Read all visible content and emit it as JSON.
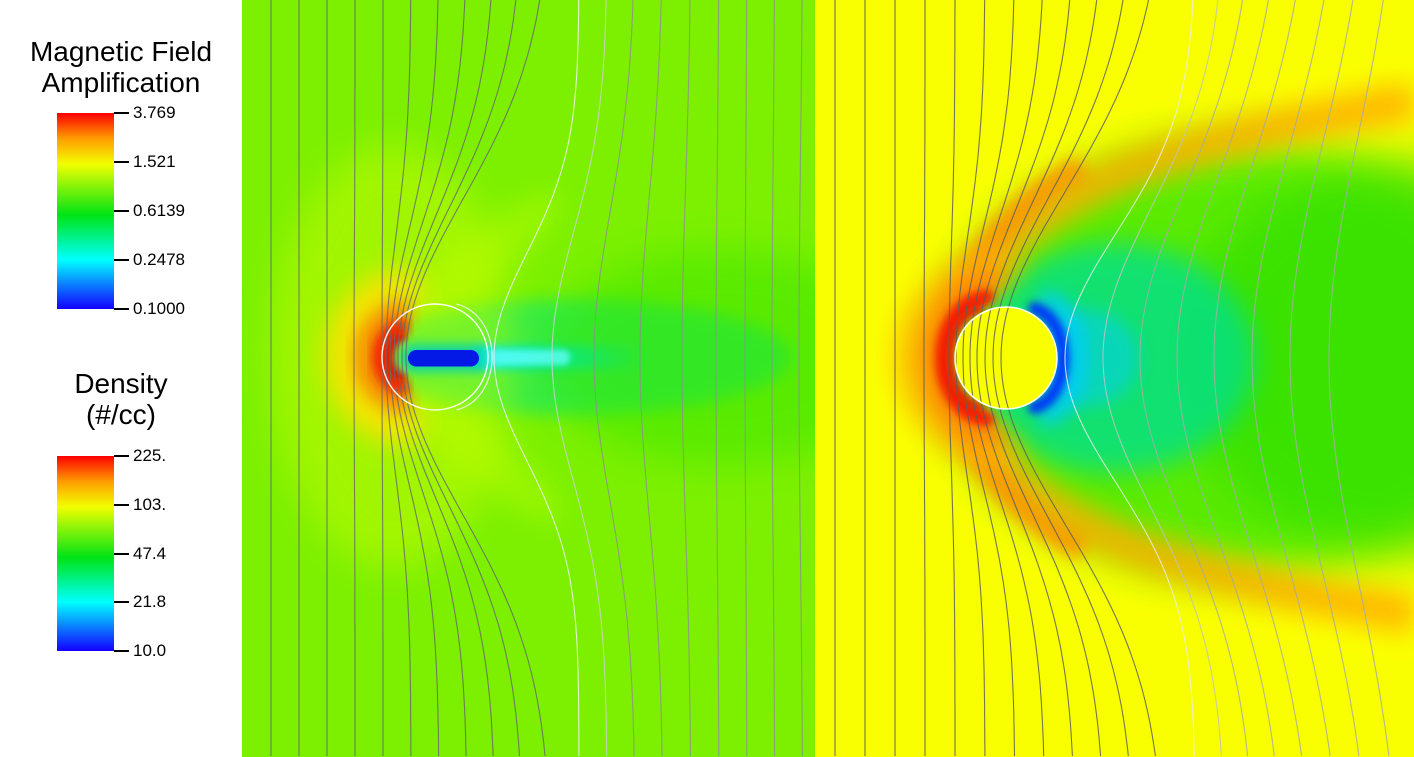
{
  "legends": [
    {
      "title_lines": [
        "Magnetic Field",
        "Amplification"
      ],
      "ticks": [
        {
          "label": "3.769",
          "pos": 0.0
        },
        {
          "label": "1.521",
          "pos": 0.25
        },
        {
          "label": "0.6139",
          "pos": 0.5
        },
        {
          "label": "0.2478",
          "pos": 0.75
        },
        {
          "label": "0.1000",
          "pos": 1.0
        }
      ]
    },
    {
      "title_lines": [
        "Density",
        "(#/cc)"
      ],
      "ticks": [
        {
          "label": "225.",
          "pos": 0.0
        },
        {
          "label": "103.",
          "pos": 0.25
        },
        {
          "label": "47.4",
          "pos": 0.5
        },
        {
          "label": "21.8",
          "pos": 0.75
        },
        {
          "label": "10.0",
          "pos": 1.0
        }
      ]
    }
  ],
  "colorbar_gradient": [
    {
      "color": "#fb0000",
      "stop": 0
    },
    {
      "color": "#ff9c00",
      "stop": 13
    },
    {
      "color": "#f2ff00",
      "stop": 26
    },
    {
      "color": "#00e414",
      "stop": 52
    },
    {
      "color": "#00ffff",
      "stop": 75
    },
    {
      "color": "#1400ff",
      "stop": 100
    }
  ],
  "panels": {
    "left": {
      "bg": "#7cf000",
      "halo_yellow": "#e0ff00",
      "wing_tinge": "#c8ff00",
      "wake_teal": "#00e87c",
      "wake_green": "#30e400",
      "shock_yellow": "#ffe200",
      "shock_orange": "#ff8c00",
      "shock_red": "#fb1e00",
      "shock_red_core": "#e80800",
      "cyan_streak": "#00f0ff",
      "streak_bright": "#66ffff",
      "pill_glow": "#00d2b4",
      "pill_blue": "#0418e6",
      "circle_outline": "#ffffff",
      "line_colors": {
        "dark": "#666b66",
        "light": "#8c938c",
        "soft": "#cbd2cb",
        "white": "#f2f2f2"
      }
    },
    "right": {
      "bg": "#faff00",
      "wake_teal": "#00e08c",
      "wake_green": "#28e400",
      "wake_far": "#20dc00",
      "flank_orange": "#ffa800",
      "flank_orange_inner": "#ff8c00",
      "shock_amber": "#ffb000",
      "shock_orange": "#ff8c00",
      "shock_red": "#fa1e00",
      "shock_red_core": "#e60800",
      "blue_crescent": "#0030ff",
      "cyan_halo": "#00ccff",
      "obstacle_fill": "#faff00",
      "circle_outline": "#ffffff",
      "line_colors": {
        "dark": "#5a5f5a",
        "light": "#a4aca4",
        "soft": "#bcc4bc",
        "white": "#e9ede9"
      }
    }
  },
  "chart_data": [
    {
      "type": "heatmap",
      "panel": "left",
      "title": "Magnetic Field Amplification",
      "scale": "log",
      "range_min": 0.1,
      "range_max": 3.769,
      "colorbar_ticks": [
        3.769,
        1.521,
        0.6139,
        0.2478,
        0.1
      ],
      "colormap_order": "blue(low) to red(high) rainbow",
      "legend_position": "left sidebar, upper",
      "features": [
        "bow shock compression (red/orange crescent)",
        "draped magnetic field lines",
        "elongated deep-blue low-field core",
        "cyan depleted wake streak",
        "white circular contour around obstacle"
      ]
    },
    {
      "type": "heatmap",
      "panel": "right",
      "title": "Density (#/cc)",
      "scale": "log",
      "range_min": 10.0,
      "range_max": 225.0,
      "colorbar_ticks": [
        225,
        103,
        47.4,
        21.8,
        10.0
      ],
      "colormap_order": "blue(low) to red(high) rainbow",
      "legend_position": "left sidebar, lower",
      "features": [
        "yellow ambient medium",
        "red dense sheath ahead of circular obstacle",
        "orange shock flanks opening downstream",
        "blue/cyan rarefied crescent behind obstacle",
        "green wake",
        "field lines threading the obstacle"
      ]
    }
  ]
}
